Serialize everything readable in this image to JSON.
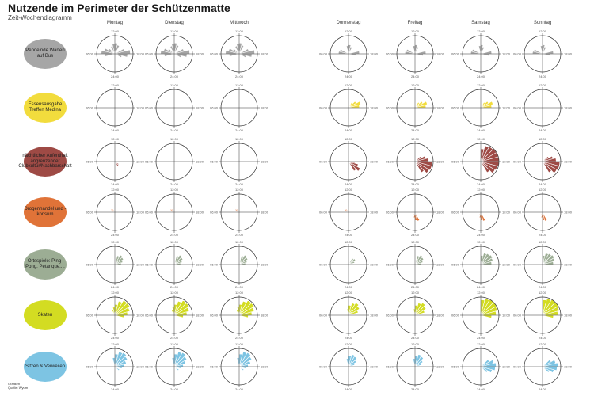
{
  "title": "Nutzende im Perimeter der Schützenmatte",
  "subtitle": "Zeit-Wochendiagramm",
  "credits": {
    "line1": "Grafiken",
    "line2": "Quelle: Wyum"
  },
  "clock_labels": {
    "top": "12:00",
    "right": "18:00",
    "bottom": "24:00",
    "left": "06:00"
  },
  "days": [
    "Montag",
    "Dienstag",
    "Mittwoch",
    "Donnerstag",
    "Freitag",
    "Samstag",
    "Sonntag"
  ],
  "rows": [
    {
      "label": "Pendelnde Warten auf Bus",
      "color": "#a6a6a6",
      "patterns": [
        "bus",
        "bus",
        "bus",
        "bus_s",
        "bus_s",
        "bus_s",
        "bus_s"
      ]
    },
    {
      "label": "Essensausgabe Treffen Medina",
      "color": "#f2dc3d",
      "patterns": [
        "none",
        "none",
        "none",
        "food",
        "food",
        "food",
        "none"
      ]
    },
    {
      "label": "nächtlicher Aufenthalt angrenzender Clubkultur/Nachbarschaft",
      "color": "#9e4a45",
      "patterns": [
        "night_s",
        "none",
        "none",
        "night_m",
        "night_l",
        "night_xl",
        "night_l"
      ]
    },
    {
      "label": "Drogenhandel und -konsum",
      "color": "#e07338",
      "patterns": [
        "drug_s",
        "drug_s",
        "drug_s",
        "drug_s",
        "drug_m",
        "drug_m",
        "drug_m"
      ]
    },
    {
      "label": "Ortsspiele: Ping-Pong, Petanque,...",
      "color": "#9cad94",
      "patterns": [
        "play",
        "play",
        "play",
        "play_s",
        "play",
        "play_arc",
        "play_arc"
      ]
    },
    {
      "label": "Skaten",
      "color": "#d3dc22",
      "patterns": [
        "skate",
        "skate",
        "skate",
        "skate_s",
        "skate_s",
        "skate_arc",
        "skate_arc"
      ]
    },
    {
      "label": "Sitzen & Verweilen",
      "color": "#7dc4e3",
      "patterns": [
        "sit",
        "sit",
        "sit",
        "sit_s",
        "sit_s",
        "sit_arc",
        "sit_arc"
      ]
    }
  ]
}
